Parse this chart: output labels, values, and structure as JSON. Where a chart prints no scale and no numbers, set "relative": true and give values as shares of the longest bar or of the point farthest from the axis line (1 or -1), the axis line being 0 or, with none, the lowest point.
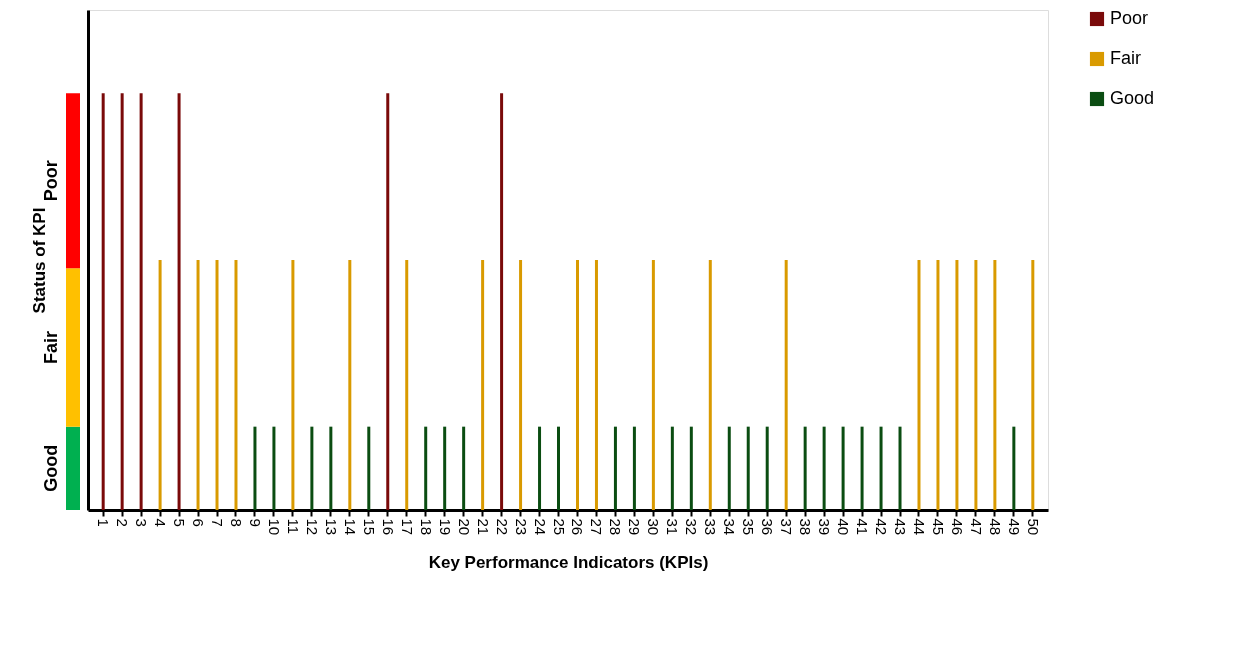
{
  "chart_data": {
    "type": "bar",
    "relative": true,
    "xlabel": "Key Performance Indicators (KPIs)",
    "ylabel": "Status of KPI",
    "categories": [
      "1",
      "2",
      "3",
      "4",
      "5",
      "6",
      "7",
      "8",
      "9",
      "10",
      "11",
      "12",
      "13",
      "14",
      "15",
      "16",
      "17",
      "18",
      "19",
      "20",
      "21",
      "22",
      "23",
      "24",
      "25",
      "26",
      "27",
      "28",
      "29",
      "30",
      "31",
      "32",
      "33",
      "34",
      "35",
      "36",
      "37",
      "38",
      "39",
      "40",
      "41",
      "42",
      "43",
      "44",
      "45",
      "46",
      "47",
      "48",
      "49",
      "50"
    ],
    "series": [
      {
        "name": "Poor",
        "color": "#7a0a0a",
        "values": [
          1,
          1,
          1,
          null,
          1,
          null,
          null,
          null,
          null,
          null,
          null,
          null,
          null,
          null,
          null,
          1,
          null,
          null,
          null,
          null,
          null,
          1,
          null,
          null,
          null,
          null,
          null,
          null,
          null,
          null,
          null,
          null,
          null,
          null,
          null,
          null,
          null,
          null,
          null,
          null,
          null,
          null,
          null,
          null,
          null,
          null,
          null,
          null,
          null,
          null
        ]
      },
      {
        "name": "Fair",
        "color": "#d99a00",
        "values": [
          null,
          null,
          null,
          0.6,
          null,
          0.6,
          0.6,
          0.6,
          null,
          null,
          0.6,
          null,
          null,
          0.6,
          null,
          null,
          0.6,
          null,
          null,
          null,
          0.6,
          null,
          0.6,
          null,
          null,
          0.6,
          0.6,
          null,
          null,
          0.6,
          null,
          null,
          0.6,
          null,
          null,
          null,
          0.6,
          null,
          null,
          null,
          null,
          null,
          null,
          0.6,
          0.6,
          0.6,
          0.6,
          0.6,
          null,
          0.6
        ]
      },
      {
        "name": "Good",
        "color": "#0b4d12",
        "values": [
          null,
          null,
          null,
          null,
          null,
          null,
          null,
          null,
          0.2,
          0.2,
          null,
          0.2,
          0.2,
          null,
          0.2,
          null,
          null,
          0.2,
          0.2,
          0.2,
          null,
          null,
          null,
          0.2,
          0.2,
          null,
          null,
          0.2,
          0.2,
          null,
          0.2,
          0.2,
          null,
          0.2,
          0.2,
          0.2,
          null,
          0.2,
          0.2,
          0.2,
          0.2,
          0.2,
          0.2,
          null,
          null,
          null,
          null,
          null,
          0.2,
          null
        ]
      }
    ],
    "annotations": [
      "Good",
      "Fair",
      "Poor"
    ],
    "legend": "right",
    "grid": false
  }
}
